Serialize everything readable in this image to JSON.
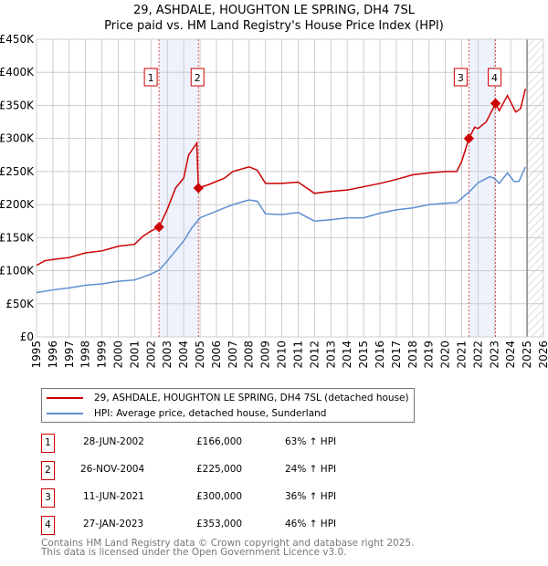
{
  "chart_data": {
    "type": "line",
    "title": "29, ASHDALE, HOUGHTON LE SPRING, DH4 7SL",
    "subtitle": "Price paid vs. HM Land Registry's House Price Index (HPI)",
    "xlim": [
      1995,
      2026
    ],
    "ylim": [
      0,
      450000
    ],
    "x_ticks": [
      "1995",
      "1996",
      "1997",
      "1998",
      "1999",
      "2000",
      "2001",
      "2002",
      "2003",
      "2004",
      "2005",
      "2006",
      "2007",
      "2008",
      "2009",
      "2010",
      "2011",
      "2012",
      "2013",
      "2014",
      "2015",
      "2016",
      "2017",
      "2018",
      "2019",
      "2020",
      "2021",
      "2022",
      "2023",
      "2024",
      "2025",
      "2026"
    ],
    "y_ticks": [
      {
        "v": 0,
        "l": "£0"
      },
      {
        "v": 50000,
        "l": "£50K"
      },
      {
        "v": 100000,
        "l": "£100K"
      },
      {
        "v": 150000,
        "l": "£150K"
      },
      {
        "v": 200000,
        "l": "£200K"
      },
      {
        "v": 250000,
        "l": "£250K"
      },
      {
        "v": 300000,
        "l": "£300K"
      },
      {
        "v": 350000,
        "l": "£350K"
      },
      {
        "v": 400000,
        "l": "£400K"
      },
      {
        "v": 450000,
        "l": "£450K"
      }
    ],
    "grid": true,
    "series": [
      {
        "name": "29, ASHDALE, HOUGHTON LE SPRING, DH4 7SL (detached house)",
        "color": "#cc0000",
        "x": [
          1995,
          1995.5,
          1996,
          1997,
          1998,
          1999,
          2000,
          2001,
          2001.5,
          2002,
          2002.49,
          2003,
          2003.5,
          2004,
          2004.3,
          2004.8,
          2004.9,
          2005.5,
          2006,
          2006.5,
          2007,
          2008,
          2008.5,
          2009,
          2010,
          2011,
          2012,
          2013,
          2014,
          2015,
          2016,
          2017,
          2018,
          2019,
          2020,
          2020.7,
          2021,
          2021.44,
          2021.8,
          2022,
          2022.5,
          2023.07,
          2023.3,
          2023.8,
          2024.3,
          2024.6,
          2024.9
        ],
        "y": [
          108,
          115,
          117,
          120,
          127,
          130,
          137,
          140,
          152,
          160,
          166,
          193,
          225,
          240,
          275,
          293,
          225,
          230,
          235,
          240,
          250,
          257,
          252,
          232,
          232,
          234,
          217,
          220,
          222,
          227,
          232,
          238,
          245,
          248,
          250,
          250,
          265,
          300,
          317,
          315,
          325,
          353,
          342,
          365,
          340,
          345,
          375
        ]
      },
      {
        "name": "HPI: Average price, detached house, Sunderland",
        "color": "#5b8fd0",
        "x": [
          1995,
          1996,
          1997,
          1998,
          1999,
          2000,
          2001,
          2002,
          2002.5,
          2003,
          2003.5,
          2004,
          2004.5,
          2005,
          2006,
          2007,
          2008,
          2008.5,
          2009,
          2010,
          2011,
          2012,
          2013,
          2014,
          2015,
          2016,
          2017,
          2018,
          2019,
          2020,
          2020.7,
          2021.5,
          2022,
          2022.7,
          2023,
          2023.3,
          2023.8,
          2024.2,
          2024.5,
          2024.9
        ],
        "y": [
          67,
          71,
          74,
          78,
          80,
          84,
          86,
          95,
          101,
          115,
          130,
          145,
          165,
          180,
          190,
          200,
          207,
          205,
          186,
          185,
          188,
          175,
          177,
          180,
          180,
          187,
          192,
          195,
          200,
          202,
          203,
          220,
          233,
          242,
          240,
          232,
          248,
          235,
          235,
          257
        ]
      }
    ],
    "y_unit_multiplier": 1000,
    "shaded_ranges": [
      [
        2002.49,
        2004.9
      ],
      [
        2021.44,
        2023.07
      ]
    ],
    "hatched_range": [
      2025,
      2026
    ],
    "sales": [
      {
        "n": "1",
        "x": 2002.49,
        "price": 166000
      },
      {
        "n": "2",
        "x": 2004.9,
        "price": 225000
      },
      {
        "n": "3",
        "x": 2021.44,
        "price": 300000
      },
      {
        "n": "4",
        "x": 2023.07,
        "price": 353000
      }
    ],
    "legend_position": "below"
  },
  "table": [
    {
      "n": "1",
      "date": "28-JUN-2002",
      "price": "£166,000",
      "hpi": "63% ↑ HPI"
    },
    {
      "n": "2",
      "date": "26-NOV-2004",
      "price": "£225,000",
      "hpi": "24% ↑ HPI"
    },
    {
      "n": "3",
      "date": "11-JUN-2021",
      "price": "£300,000",
      "hpi": "36% ↑ HPI"
    },
    {
      "n": "4",
      "date": "27-JAN-2023",
      "price": "£353,000",
      "hpi": "46% ↑ HPI"
    }
  ],
  "footer": [
    "Contains HM Land Registry data © Crown copyright and database right 2025.",
    "This data is licensed under the Open Government Licence v3.0."
  ]
}
